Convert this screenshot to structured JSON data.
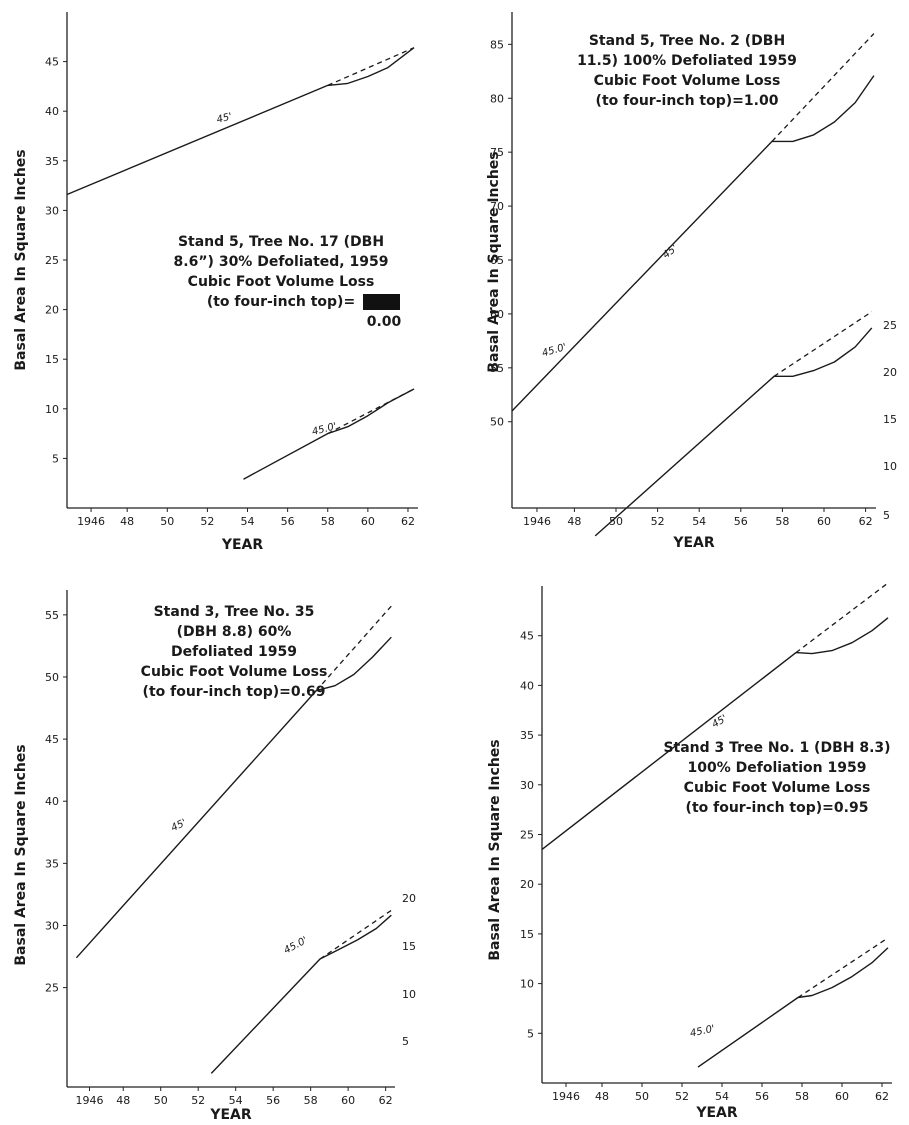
{
  "chart_data": [
    {
      "type": "line",
      "xlabel": "YEAR",
      "ylabel": "Basal Area In Square Inches",
      "x_tick_labels": [
        "1946",
        "48",
        "50",
        "52",
        "54",
        "56",
        "58",
        "60",
        "62"
      ],
      "xlim": [
        1945,
        1962.5
      ],
      "ylim": [
        0,
        50
      ],
      "y_tick_labels": [
        "5",
        "10",
        "15",
        "20",
        "25",
        "30",
        "35",
        "40",
        "45"
      ],
      "right_tick_labels": [],
      "annotation": [
        "Stand 5, Tree No. 17 (DBH",
        "8.6”) 30% Defoliated, 1959",
        "Cubic Foot Volume Loss",
        "(to four-inch top)=",
        "0.00"
      ],
      "series": [
        {
          "label": "45'",
          "axis": "left",
          "solid_x": [
            1945,
            1958,
            1959,
            1960,
            1961,
            1962.3
          ],
          "solid_y": [
            31.6,
            42.6,
            42.8,
            43.5,
            44.4,
            46.4
          ],
          "dashed_x": [
            1958,
            1962.3
          ],
          "dashed_y": [
            42.6,
            46.4
          ]
        },
        {
          "label": "45.0'",
          "axis": "left",
          "solid_x": [
            1953.8,
            1958,
            1959,
            1960,
            1961,
            1962.3
          ],
          "solid_y": [
            2.9,
            7.5,
            8.2,
            9.3,
            10.6,
            12.0
          ],
          "dashed_x": [
            1958,
            1962.3
          ],
          "dashed_y": [
            7.5,
            12.0
          ]
        }
      ]
    },
    {
      "type": "line",
      "xlabel": "YEAR",
      "ylabel": "Basal Area In Square Inches",
      "x_tick_labels": [
        "1946",
        "48",
        "50",
        "52",
        "54",
        "56",
        "58",
        "60",
        "62"
      ],
      "xlim": [
        1945,
        1962.5
      ],
      "ylim": [
        42,
        88
      ],
      "y_tick_labels": [
        "50",
        "55",
        "60",
        "65",
        "70",
        "75",
        "80",
        "85"
      ],
      "right_tick_labels": [
        "25",
        "20",
        "15",
        "10",
        "5"
      ],
      "annotation": [
        "Stand 5, Tree No. 2 (DBH",
        "11.5) 100% Defoliated 1959",
        "Cubic Foot Volume Loss",
        "(to four-inch top)=1.00"
      ],
      "series": [
        {
          "label": "45'",
          "axis": "left",
          "solid_x": [
            1945,
            1957.5,
            1958.5,
            1959.5,
            1960.5,
            1961.5,
            1962.4
          ],
          "solid_y": [
            51,
            76,
            76,
            76.6,
            77.8,
            79.6,
            82.1
          ],
          "dashed_x": [
            1957.5,
            1962.4
          ],
          "dashed_y": [
            76,
            86
          ]
        },
        {
          "label": "45.0'",
          "axis": "right",
          "solid_x": [
            1949,
            1957.6,
            1958.5,
            1959.5,
            1960.5,
            1961.5,
            1962.3
          ],
          "solid_y": [
            2.8,
            19.6,
            19.6,
            20.2,
            21.1,
            22.7,
            24.7
          ],
          "dashed_x": [
            1957.6,
            1962.3
          ],
          "dashed_y": [
            19.6,
            26.4
          ]
        }
      ]
    },
    {
      "type": "line",
      "xlabel": "YEAR",
      "ylabel": "Basal Area In Square Inches",
      "x_tick_labels": [
        "1946",
        "48",
        "50",
        "52",
        "54",
        "56",
        "58",
        "60",
        "62"
      ],
      "xlim": [
        1945,
        1962.5
      ],
      "ylim": [
        17,
        57
      ],
      "y_tick_labels": [
        "25",
        "30",
        "35",
        "40",
        "45",
        "50",
        "55"
      ],
      "right_tick_labels": [
        "20",
        "15",
        "10",
        "5"
      ],
      "annotation": [
        "Stand 3, Tree No. 35",
        "(DBH 8.8) 60%",
        "Defoliated 1959",
        "Cubic Foot Volume Loss",
        "(to four-inch top)=0.69"
      ],
      "series": [
        {
          "label": "45'",
          "axis": "left",
          "solid_x": [
            1945.5,
            1958.3,
            1959.3,
            1960.3,
            1961.3,
            1962.3
          ],
          "solid_y": [
            27.4,
            48.9,
            49.3,
            50.2,
            51.6,
            53.2
          ],
          "dashed_x": [
            1958.3,
            1962.3
          ],
          "dashed_y": [
            48.9,
            55.7
          ]
        },
        {
          "label": "45.0'",
          "axis": "right",
          "solid_x": [
            1952.7,
            1958.5,
            1959.5,
            1960.5,
            1961.5,
            1962.3
          ],
          "solid_y": [
            1.6,
            13.6,
            14.6,
            15.6,
            16.8,
            18.2
          ],
          "dashed_x": [
            1958.5,
            1962.3
          ],
          "dashed_y": [
            13.6,
            18.7
          ]
        }
      ]
    },
    {
      "type": "line",
      "xlabel": "YEAR",
      "ylabel": "Basal Area In Square Inches",
      "x_tick_labels": [
        "1946",
        "48",
        "50",
        "52",
        "54",
        "56",
        "58",
        "60",
        "62"
      ],
      "xlim": [
        1945,
        1962.5
      ],
      "ylim": [
        0,
        50
      ],
      "y_tick_labels": [
        "5",
        "10",
        "15",
        "20",
        "25",
        "30",
        "35",
        "40",
        "45"
      ],
      "right_tick_labels": [],
      "annotation": [
        "Stand 3 Tree No. 1 (DBH 8.3)",
        "100% Defoliation 1959",
        "Cubic Foot Volume Loss",
        "(to four-inch top)=0.95"
      ],
      "series": [
        {
          "label": "45'",
          "axis": "left",
          "solid_x": [
            1945,
            1957.7,
            1958.5,
            1959.5,
            1960.5,
            1961.5,
            1962.3
          ],
          "solid_y": [
            23.5,
            43.3,
            43.2,
            43.5,
            44.3,
            45.5,
            46.8
          ],
          "dashed_x": [
            1957.7,
            1962.3
          ],
          "dashed_y": [
            43.3,
            50.3
          ]
        },
        {
          "label": "45.0'",
          "axis": "left",
          "solid_x": [
            1952.8,
            1957.8,
            1958.5,
            1959.5,
            1960.5,
            1961.5,
            1962.3
          ],
          "solid_y": [
            1.6,
            8.6,
            8.8,
            9.6,
            10.7,
            12.1,
            13.6
          ],
          "dashed_x": [
            1957.8,
            1962.3
          ],
          "dashed_y": [
            8.6,
            14.6
          ]
        }
      ]
    }
  ]
}
